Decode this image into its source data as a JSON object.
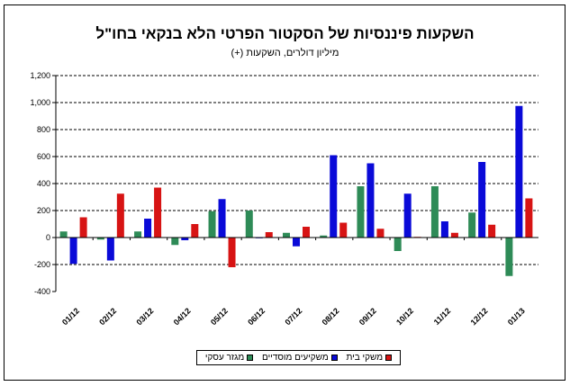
{
  "chart_data": {
    "type": "bar",
    "title": "השקעות פיננסיות של הסקטור הפרטי הלא בנקאי בחו\"ל",
    "subtitle": "מיליון דולרים, השקעות (+)",
    "categories": [
      "01/12",
      "02/12",
      "03/12",
      "04/12",
      "05/12",
      "06/12",
      "07/12",
      "08/12",
      "09/12",
      "10/12",
      "11/12",
      "12/12",
      "01/13"
    ],
    "ylim": [
      -400,
      1200
    ],
    "yticks": [
      -400,
      -200,
      0,
      200,
      400,
      600,
      800,
      1000,
      1200
    ],
    "ytick_labels": [
      "-400",
      "-200",
      "0",
      "200",
      "400",
      "600",
      "800",
      "1,000",
      "1,200"
    ],
    "grid": "horizontal dashed",
    "legend_position": "bottom",
    "series": [
      {
        "name": "מגזר עסקי",
        "color": "#2e8b57",
        "values": [
          45,
          -15,
          45,
          -55,
          195,
          200,
          35,
          15,
          380,
          -100,
          380,
          185,
          -285
        ]
      },
      {
        "name": "משקיעים מוסדיים",
        "color": "#0a0ad8",
        "values": [
          -195,
          -170,
          140,
          -20,
          285,
          -5,
          -65,
          610,
          550,
          325,
          120,
          560,
          975
        ]
      },
      {
        "name": "משקי בית",
        "color": "#d71414",
        "values": [
          150,
          325,
          370,
          100,
          -220,
          40,
          80,
          110,
          65,
          5,
          35,
          95,
          290
        ]
      }
    ]
  }
}
